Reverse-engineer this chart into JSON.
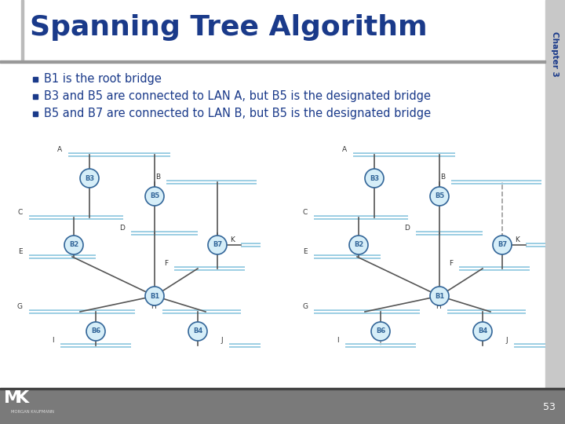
{
  "title": "Spanning Tree Algorithm",
  "chapter": "Chapter 3",
  "title_color": "#1a3a8a",
  "title_fontsize": 26,
  "header_bg": "#ffffff",
  "footer_bg": "#7a7a7a",
  "bullet_color": "#1a3a8a",
  "bullet_points": [
    "B1 is the root bridge",
    "B3 and B5 are connected to LAN A, but B5 is the designated bridge",
    "B5 and B7 are connected to LAN B, but B5 is the designated bridge"
  ],
  "bullet_fontsize": 10.5,
  "page_number": "53",
  "sidebar_color": "#c8c8c8",
  "divider_color": "#888888",
  "node_fill": "#d6eef8",
  "node_edge": "#336699",
  "lan_color": "#90c8e0",
  "line_color": "#555555",
  "dashed_color": "#999999",
  "label_color": "#333333"
}
